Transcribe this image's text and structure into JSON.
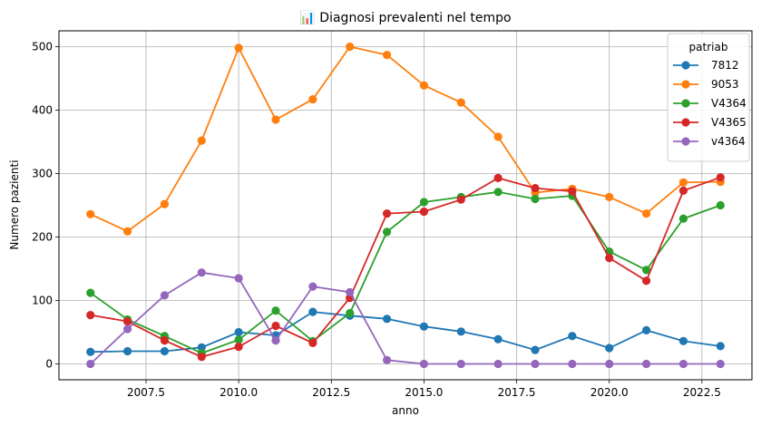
{
  "chart_data": {
    "type": "line",
    "title": "📊 Diagnosi prevalenti nel tempo",
    "xlabel": "anno",
    "ylabel": "Numero pazienti",
    "xlim": [
      2005.15,
      2023.85
    ],
    "ylim": [
      -25,
      525
    ],
    "xticks": [
      2007.5,
      2010.0,
      2012.5,
      2015.0,
      2017.5,
      2020.0,
      2022.5
    ],
    "xtick_labels": [
      "2007.5",
      "2010.0",
      "2012.5",
      "2015.0",
      "2017.5",
      "2020.0",
      "2022.5"
    ],
    "yticks": [
      0,
      100,
      200,
      300,
      400,
      500
    ],
    "ytick_labels": [
      "0",
      "100",
      "200",
      "300",
      "400",
      "500"
    ],
    "grid": true,
    "legend": {
      "title": "patriab",
      "placement": "top-right"
    },
    "x": [
      2006,
      2007,
      2008,
      2009,
      2010,
      2011,
      2012,
      2013,
      2014,
      2015,
      2016,
      2017,
      2018,
      2019,
      2020,
      2021,
      2022,
      2023
    ],
    "series": [
      {
        "name": "7812",
        "color": "#1f77b4",
        "values": [
          19,
          20,
          20,
          26,
          50,
          45,
          82,
          76,
          71,
          59,
          51,
          39,
          22,
          44,
          25,
          53,
          36,
          28
        ]
      },
      {
        "name": "9053",
        "color": "#ff7f0e",
        "values": [
          236,
          209,
          252,
          352,
          498,
          385,
          417,
          500,
          487,
          439,
          412,
          358,
          270,
          276,
          263,
          237,
          286,
          287
        ]
      },
      {
        "name": "V4364",
        "color": "#2ca02c",
        "values": [
          112,
          70,
          44,
          17,
          38,
          84,
          36,
          80,
          208,
          255,
          263,
          271,
          260,
          265,
          177,
          148,
          229,
          250
        ]
      },
      {
        "name": "V4365",
        "color": "#d62728",
        "values": [
          77,
          67,
          37,
          11,
          27,
          60,
          33,
          104,
          237,
          240,
          259,
          293,
          277,
          272,
          167,
          131,
          273,
          294
        ]
      },
      {
        "name": "v4364",
        "color": "#9467bd",
        "values": [
          0,
          55,
          108,
          144,
          135,
          37,
          122,
          113,
          6,
          0,
          0,
          0,
          0,
          0,
          0,
          0,
          0,
          0
        ]
      }
    ]
  }
}
